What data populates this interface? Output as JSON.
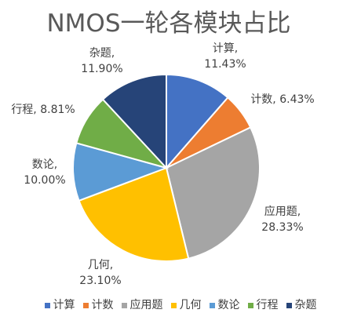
{
  "chart_data": {
    "type": "pie",
    "title": "NMOS一轮各模块占比",
    "categories": [
      "计算",
      "计数",
      "应用题",
      "几何",
      "数论",
      "行程",
      "杂题"
    ],
    "values": [
      11.43,
      6.43,
      28.33,
      23.1,
      10.0,
      8.81,
      11.9
    ],
    "value_labels": [
      "计算, 11.43%",
      "计数, 6.43%",
      "应用题, 28.33%",
      "几何, 23.10%",
      "数论, 10.00%",
      "行程, 8.81%",
      "杂题, 11.90%"
    ],
    "colors": [
      "#4472c4",
      "#ed7d31",
      "#a5a5a5",
      "#ffc000",
      "#5b9bd5",
      "#70ad47",
      "#264478"
    ],
    "legend": "bottom"
  }
}
